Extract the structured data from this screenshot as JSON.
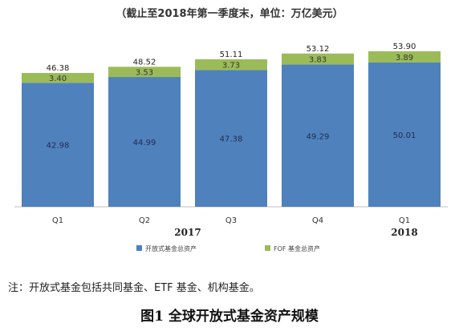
{
  "subtitle": "（截止至2018年第一季度末，单位：万亿美元）",
  "note": "注：开放式基金包括共同基金、ETF 基金、机构基金。",
  "caption": "图1  全球开放式基金资产规模",
  "chart_data": {
    "type": "bar",
    "stacked": true,
    "categories": [
      "Q1",
      "Q2",
      "Q3",
      "Q4",
      "Q1"
    ],
    "year_labels": [
      {
        "label": "2017",
        "span": [
          0,
          3
        ]
      },
      {
        "label": "2018",
        "span": [
          4,
          4
        ]
      }
    ],
    "series": [
      {
        "name": "开放式基金总资产",
        "color": "#4f81bd",
        "values": [
          42.98,
          44.99,
          47.38,
          49.29,
          50.01
        ]
      },
      {
        "name": "FOF基金总资产",
        "color": "#9bbb59",
        "values": [
          3.4,
          3.53,
          3.73,
          3.83,
          3.89
        ]
      }
    ],
    "totals": [
      "46.38",
      "48.52",
      "51.11",
      "53.12",
      "53.90"
    ],
    "value_labels": [
      [
        "42.98",
        "44.99",
        "47.38",
        "49.29",
        "50.01"
      ],
      [
        "3.40",
        "3.53",
        "3.73",
        "3.83",
        "3.89"
      ]
    ],
    "legend_labels": [
      "开放式基金总资产",
      "FOF 基金总资产"
    ],
    "legend_position": "bottom",
    "ylim": [
      0,
      55
    ],
    "grid": false
  }
}
